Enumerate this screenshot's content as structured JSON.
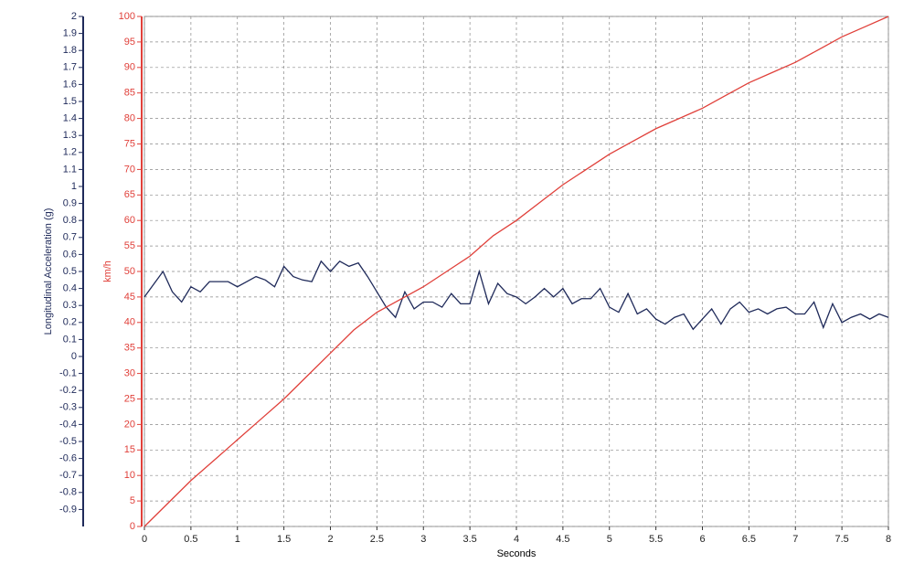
{
  "chart_data": {
    "type": "line",
    "x_label": "Seconds",
    "y_label": "Longitudinal Acceleration (g)",
    "y2_label": "km/h",
    "xlim": [
      0,
      8
    ],
    "xticks": [
      0,
      0.5,
      1,
      1.5,
      2,
      2.5,
      3,
      3.5,
      4,
      4.5,
      5,
      5.5,
      6,
      6.5,
      7,
      7.5,
      8
    ],
    "ylim": [
      -1,
      2
    ],
    "yticks": [
      2,
      1.9,
      1.8,
      1.7,
      1.6,
      1.5,
      1.4,
      1.3,
      1.2,
      1.1,
      1,
      0.9,
      0.8,
      0.7,
      0.6,
      0.5,
      0.4,
      0.3,
      0.2,
      0.1,
      0,
      -0.1,
      -0.2,
      -0.3,
      -0.4,
      -0.5,
      -0.6,
      -0.7,
      -0.8,
      -0.9
    ],
    "y2lim": [
      0,
      100
    ],
    "y2ticks": [
      0,
      5,
      10,
      15,
      20,
      25,
      30,
      35,
      40,
      45,
      50,
      55,
      60,
      65,
      70,
      75,
      80,
      85,
      90,
      95,
      100
    ],
    "grid": true,
    "y_color": "#1f2a5a",
    "y2_color": "#e0403a",
    "series": [
      {
        "color": "#1f2a5a",
        "x": [
          0,
          0.2,
          0.3,
          0.4,
          0.5,
          0.6,
          0.7,
          0.8,
          0.9,
          1,
          1.1,
          1.2,
          1.3,
          1.4,
          1.5,
          1.6,
          1.7,
          1.8,
          1.9,
          2,
          2.1,
          2.2,
          2.3,
          2.4,
          2.5,
          2.6,
          2.7,
          2.8,
          2.9,
          3,
          3.1,
          3.2,
          3.3,
          3.4,
          3.5,
          3.6,
          3.7,
          3.8,
          3.9,
          4,
          4.1,
          4.2,
          4.3,
          4.4,
          4.5,
          4.6,
          4.7,
          4.8,
          4.9,
          5,
          5.1,
          5.2,
          5.3,
          5.4,
          5.5,
          5.6,
          5.7,
          5.8,
          5.9,
          6,
          6.1,
          6.2,
          6.3,
          6.4,
          6.5,
          6.6,
          6.7,
          6.8,
          6.9,
          7,
          7.1,
          7.2,
          7.3,
          7.4,
          7.5,
          7.6,
          7.7,
          7.8,
          7.9,
          8
        ],
        "values": [
          0.35,
          0.5,
          0.38,
          0.32,
          0.41,
          0.38,
          0.44,
          0.44,
          0.44,
          0.41,
          0.44,
          0.47,
          0.45,
          0.41,
          0.53,
          0.47,
          0.45,
          0.44,
          0.56,
          0.5,
          0.56,
          0.53,
          0.55,
          0.47,
          0.38,
          0.29,
          0.23,
          0.38,
          0.28,
          0.32,
          0.32,
          0.29,
          0.37,
          0.31,
          0.31,
          0.5,
          0.31,
          0.43,
          0.37,
          0.35,
          0.31,
          0.35,
          0.4,
          0.35,
          0.4,
          0.31,
          0.34,
          0.34,
          0.4,
          0.29,
          0.26,
          0.37,
          0.25,
          0.28,
          0.22,
          0.19,
          0.23,
          0.25,
          0.16,
          0.22,
          0.28,
          0.19,
          0.28,
          0.32,
          0.26,
          0.28,
          0.25,
          0.28,
          0.29,
          0.25,
          0.25,
          0.32,
          0.17,
          0.31,
          0.2,
          0.23,
          0.25,
          0.22,
          0.25,
          0.23
        ]
      },
      {
        "color": "#e0403a",
        "axis": "y2",
        "x": [
          0,
          0.25,
          0.5,
          0.75,
          1,
          1.25,
          1.5,
          1.75,
          2,
          2.25,
          2.5,
          2.75,
          3,
          3.25,
          3.5,
          3.75,
          4,
          4.25,
          4.5,
          4.75,
          5,
          5.25,
          5.5,
          5.75,
          6,
          6.25,
          6.5,
          6.75,
          7,
          7.25,
          7.5,
          7.75,
          8
        ],
        "values": [
          0,
          4.5,
          9,
          13,
          17,
          21,
          25,
          29.5,
          34,
          38.5,
          42,
          44.5,
          47,
          50,
          53,
          57,
          60,
          63.5,
          67,
          70,
          73,
          75.5,
          78,
          80,
          82,
          84.5,
          87,
          89,
          91,
          93.5,
          96,
          98,
          100
        ]
      }
    ]
  }
}
